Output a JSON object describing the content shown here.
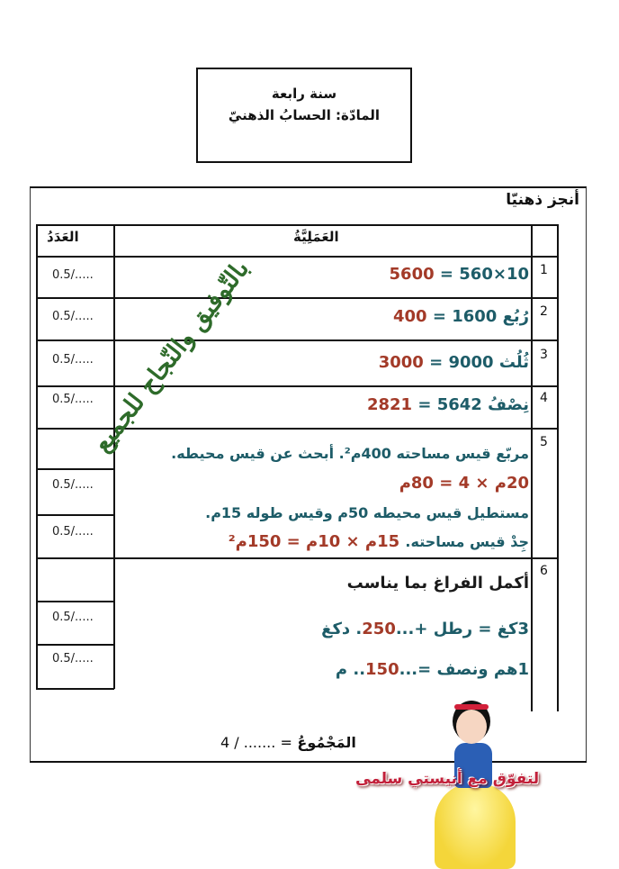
{
  "header": {
    "grade": "سنة رابعة",
    "subject": "المادّة: الحسابُ الذهنيّ"
  },
  "section_title": "أنجز ذهنيّا",
  "table": {
    "col_score": "العَدَدُ",
    "col_operation": "العَمَلِيَّةُ",
    "rows": [
      {
        "num": "1",
        "question": "10×560 =",
        "answer": "5600",
        "scores": [
          "0.5/....."
        ]
      },
      {
        "num": "2",
        "question": "رُبُع 1600 =",
        "answer": "400",
        "scores": [
          "0.5/....."
        ]
      },
      {
        "num": "3",
        "question": "ثُلُث 9000 =",
        "answer": "3000",
        "scores": [
          "0.5/....."
        ]
      },
      {
        "num": "4",
        "question": "نِصْفُ 5642 =",
        "answer": "2821",
        "scores": [
          "0.5/....."
        ]
      },
      {
        "num": "5",
        "line1": "مربّع قيس مساحته 400م². أبحث عن قيس محيطه.",
        "line2": "20م × 4 = 80م",
        "line3": "مستطيل قيس محيطه 50م وقيس طوله 15م.",
        "line4_q": "جِدْ قيس مساحته.",
        "line4_a": "15م × 10م = 150م²",
        "scores": [
          "0.5/.....",
          "0.5/....."
        ]
      },
      {
        "num": "6",
        "title": "أكمل الفراغ بما يناسب",
        "line1_a": "3كغ = رطل +...",
        "line1_ans": "250",
        "line1_b": ". دكغ",
        "line2_a": "1هم ونصف =...",
        "line2_ans": "150",
        "line2_b": ".. م",
        "scores": [
          "0.5/.....",
          "0.5/....."
        ]
      }
    ]
  },
  "total": {
    "label": "المَجْمُوعُ",
    "value": "= ....... / 4"
  },
  "watermark": "بالتّوفيق والنّجاح للجميع",
  "caption": "لتفوّق مع أنيستي سلمى",
  "colors": {
    "teal": "#1d5c68",
    "answer_red": "#a33a28",
    "watermark_green": "#2e6b2a",
    "caption_red": "#c2203a"
  }
}
